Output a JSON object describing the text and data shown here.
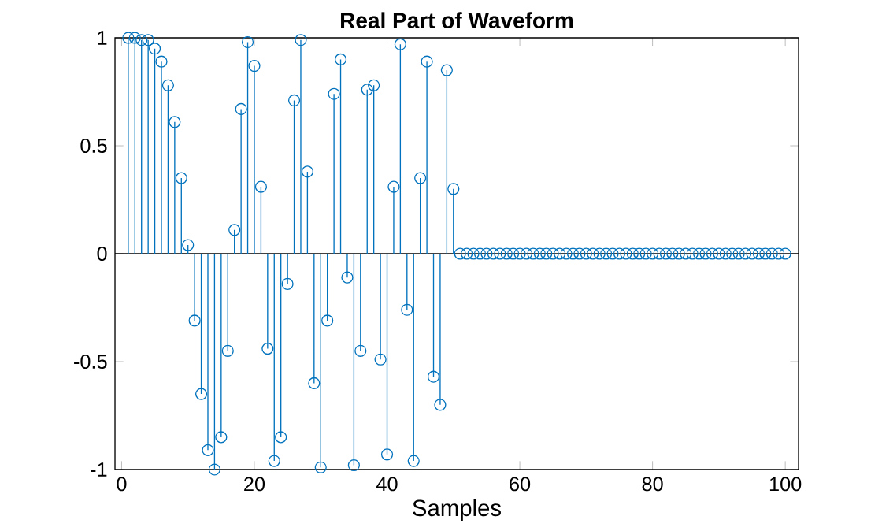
{
  "chart_data": {
    "type": "lollipop",
    "title": "Real Part of Waveform",
    "xlabel": "Samples",
    "x": [
      1,
      2,
      3,
      4,
      5,
      6,
      7,
      8,
      9,
      10,
      11,
      12,
      13,
      14,
      15,
      16,
      17,
      18,
      19,
      20,
      21,
      22,
      23,
      24,
      25,
      26,
      27,
      28,
      29,
      30,
      31,
      32,
      33,
      34,
      35,
      36,
      37,
      38,
      39,
      40,
      41,
      42,
      43,
      44,
      45,
      46,
      47,
      48,
      49,
      50,
      51,
      52,
      53,
      54,
      55,
      56,
      57,
      58,
      59,
      60,
      61,
      62,
      63,
      64,
      65,
      66,
      67,
      68,
      69,
      70,
      71,
      72,
      73,
      74,
      75,
      76,
      77,
      78,
      79,
      80,
      81,
      82,
      83,
      84,
      85,
      86,
      87,
      88,
      89,
      90,
      91,
      92,
      93,
      94,
      95,
      96,
      97,
      98,
      99,
      100
    ],
    "values": [
      1.0,
      1.0,
      0.99,
      0.99,
      0.95,
      0.89,
      0.78,
      0.61,
      0.35,
      0.04,
      -0.31,
      -0.65,
      -0.91,
      -1.0,
      -0.85,
      -0.45,
      0.11,
      0.67,
      0.98,
      0.87,
      0.31,
      -0.44,
      -0.96,
      -0.85,
      -0.14,
      0.71,
      0.99,
      0.38,
      -0.6,
      -0.99,
      -0.31,
      0.74,
      0.9,
      -0.11,
      -0.98,
      -0.45,
      0.76,
      0.78,
      -0.49,
      -0.93,
      0.31,
      0.97,
      -0.26,
      -0.96,
      0.35,
      0.89,
      -0.57,
      -0.7,
      0.85,
      0.3,
      0,
      0,
      0,
      0,
      0,
      0,
      0,
      0,
      0,
      0,
      0,
      0,
      0,
      0,
      0,
      0,
      0,
      0,
      0,
      0,
      0,
      0,
      0,
      0,
      0,
      0,
      0,
      0,
      0,
      0,
      0,
      0,
      0,
      0,
      0,
      0,
      0,
      0,
      0,
      0,
      0,
      0,
      0,
      0,
      0,
      0,
      0,
      0,
      0,
      0
    ],
    "color": "#0072bd",
    "marker": "circle",
    "xlim": [
      -1,
      102
    ],
    "ylim": [
      -1,
      1
    ],
    "xticks": [
      0,
      20,
      40,
      60,
      80,
      100
    ],
    "yticks": [
      -1,
      -0.5,
      0,
      0.5,
      1
    ]
  }
}
